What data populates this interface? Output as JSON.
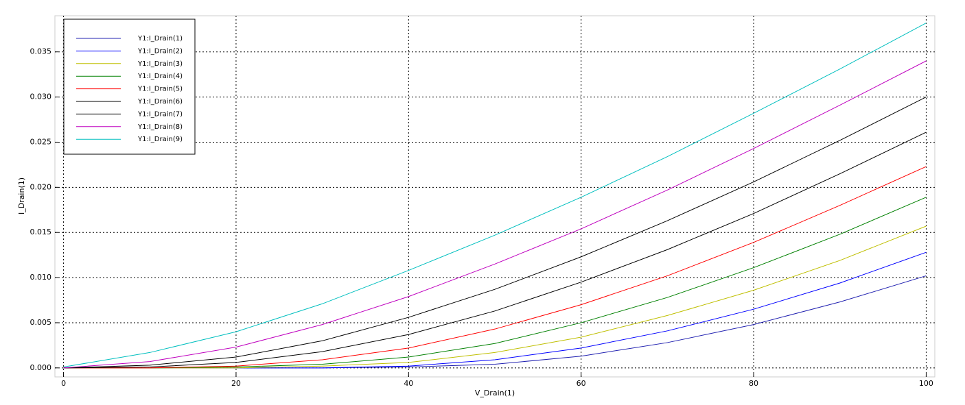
{
  "chart_data": {
    "type": "line",
    "xlabel": "V_Drain(1)",
    "ylabel": "I_Drain(1)",
    "x": [
      0,
      10,
      20,
      30,
      40,
      50,
      60,
      70,
      80,
      90,
      100
    ],
    "series": [
      {
        "name": "Y1:I_Drain(1)",
        "color": "#2020b0",
        "values": [
          0,
          0,
          0,
          0,
          0.0001,
          0.0004,
          0.0013,
          0.0028,
          0.0048,
          0.0073,
          0.0102
        ]
      },
      {
        "name": "Y1:I_Drain(2)",
        "color": "#0000ff",
        "values": [
          0,
          0,
          0,
          0,
          0.0002,
          0.0009,
          0.0022,
          0.0041,
          0.0065,
          0.0094,
          0.0128
        ]
      },
      {
        "name": "Y1:I_Drain(3)",
        "color": "#bfbf00",
        "values": [
          0,
          0,
          0,
          0.0002,
          0.0006,
          0.0017,
          0.0034,
          0.0058,
          0.0086,
          0.0119,
          0.0157
        ]
      },
      {
        "name": "Y1:I_Drain(4)",
        "color": "#008000",
        "values": [
          0,
          0,
          0.0001,
          0.0004,
          0.0012,
          0.0027,
          0.005,
          0.0078,
          0.0111,
          0.0148,
          0.0189
        ]
      },
      {
        "name": "Y1:I_Drain(5)",
        "color": "#ff0000",
        "values": [
          0,
          0,
          0.0002,
          0.0009,
          0.0022,
          0.0043,
          0.007,
          0.0102,
          0.0139,
          0.018,
          0.0223
        ]
      },
      {
        "name": "Y1:I_Drain(6)",
        "color": "#000000",
        "values": [
          0,
          0.0001,
          0.0006,
          0.0018,
          0.0037,
          0.0063,
          0.0095,
          0.0131,
          0.0171,
          0.0215,
          0.0261
        ]
      },
      {
        "name": "Y1:I_Drain(7)",
        "color": "#000000",
        "values": [
          0,
          0.0003,
          0.0012,
          0.003,
          0.0056,
          0.0087,
          0.0123,
          0.0163,
          0.0206,
          0.0252,
          0.03
        ]
      },
      {
        "name": "Y1:I_Drain(8)",
        "color": "#bf00bf",
        "values": [
          0,
          0.0007,
          0.0023,
          0.0048,
          0.0079,
          0.0115,
          0.0154,
          0.0197,
          0.0243,
          0.0291,
          0.034
        ]
      },
      {
        "name": "Y1:I_Drain(9)",
        "color": "#00bfbf",
        "values": [
          0.0001,
          0.0017,
          0.004,
          0.0071,
          0.0108,
          0.0147,
          0.0189,
          0.0234,
          0.0282,
          0.0331,
          0.0382
        ]
      }
    ],
    "xlim": [
      -1,
      101
    ],
    "xticks": [
      0,
      20,
      40,
      60,
      80,
      100
    ],
    "ylim": [
      -0.001,
      0.039
    ],
    "yticks": [
      {
        "value": 0,
        "label": "0.000"
      },
      {
        "value": 0.005,
        "label": "0.005"
      },
      {
        "value": 0.01,
        "label": "0.010"
      },
      {
        "value": 0.015,
        "label": "0.015"
      },
      {
        "value": 0.02,
        "label": "0.020"
      },
      {
        "value": 0.025,
        "label": "0.025"
      },
      {
        "value": 0.03,
        "label": "0.030"
      },
      {
        "value": 0.035,
        "label": "0.035"
      }
    ],
    "grid": true,
    "legend": "upper left"
  }
}
